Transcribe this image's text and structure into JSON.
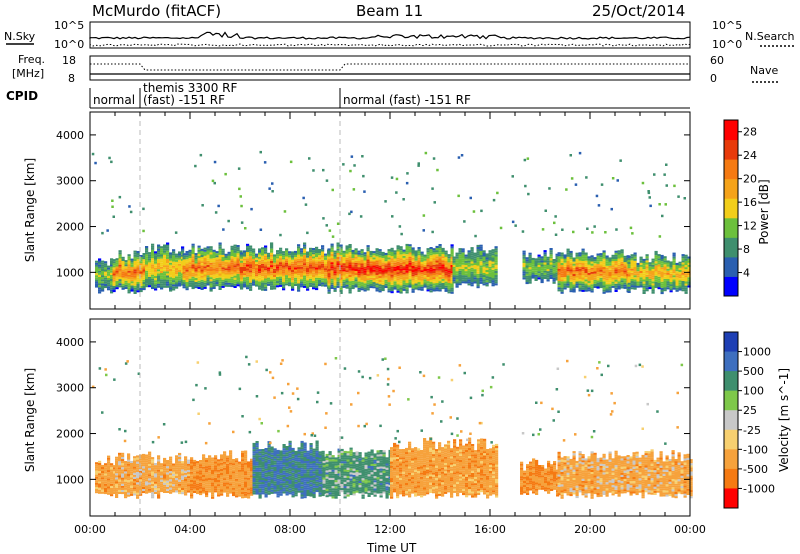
{
  "header": {
    "station": "McMurdo (fitACF)",
    "beam": "Beam 11",
    "date": "25/Oct/2014"
  },
  "noise_panel": {
    "left_label": "N.Sky",
    "right_label": "N.Search",
    "left_ticks": [
      "10^5",
      "10^0"
    ],
    "right_ticks": [
      "10^5",
      "10^0"
    ]
  },
  "freq_panel": {
    "left_label_1": "Freq.",
    "left_label_2": "[MHz]",
    "right_label": "Nave",
    "left_ticks": [
      "18",
      "8"
    ],
    "right_ticks": [
      "60",
      "0"
    ]
  },
  "cpid_panel": {
    "label": "CPID",
    "segments": [
      {
        "start_hour": 0,
        "end_hour": 2,
        "lines": [
          "normal"
        ]
      },
      {
        "start_hour": 2,
        "end_hour": 10,
        "lines": [
          "themis 3300 RF",
          "(fast) -151 RF"
        ]
      },
      {
        "start_hour": 10,
        "end_hour": 24,
        "lines": [
          "normal (fast) -151 RF"
        ]
      }
    ]
  },
  "colors": {
    "power": [
      "#0000ff",
      "#2a5fb0",
      "#3f8f6e",
      "#6cc03c",
      "#f2ce1a",
      "#f5a31a",
      "#f57a12",
      "#e83a0a",
      "#ff0000"
    ],
    "velocity": [
      "#1e3fb4",
      "#3e6fbf",
      "#3f8f6e",
      "#7ec84a",
      "#c8c8c8",
      "#f7d070",
      "#f6a23c",
      "#f57a12",
      "#ff0000"
    ]
  },
  "chart_data": [
    {
      "type": "heatmap",
      "name": "power",
      "xlabel": "",
      "ylabel": "Slant Range [km]",
      "xlim": [
        0,
        24
      ],
      "ylim": [
        200,
        4500
      ],
      "yticks": [
        "1000",
        "2000",
        "3000",
        "4000"
      ],
      "colorbar_label": "Power [dB]",
      "colorbar_ticks": [
        "4",
        "8",
        "12",
        "16",
        "20",
        "24",
        "28"
      ],
      "colorbar_range": [
        0,
        30
      ],
      "scatter_bands": [
        {
          "x_start": 0.2,
          "x_end": 0.9,
          "y_start": 600,
          "y_end": 1250,
          "level": 12
        },
        {
          "x_start": 0.9,
          "x_end": 2.2,
          "y_start": 600,
          "y_end": 1350,
          "level": 24
        },
        {
          "x_start": 2.2,
          "x_end": 3.7,
          "y_start": 650,
          "y_end": 1500,
          "level": 18
        },
        {
          "x_start": 3.7,
          "x_end": 6.0,
          "y_start": 650,
          "y_end": 1500,
          "level": 24
        },
        {
          "x_start": 6.0,
          "x_end": 9.5,
          "y_start": 650,
          "y_end": 1500,
          "level": 26
        },
        {
          "x_start": 9.5,
          "x_end": 14.5,
          "y_start": 600,
          "y_end": 1500,
          "level": 28
        },
        {
          "x_start": 14.5,
          "x_end": 16.2,
          "y_start": 700,
          "y_end": 1450,
          "level": 14
        },
        {
          "x_start": 17.3,
          "x_end": 18.7,
          "y_start": 800,
          "y_end": 1400,
          "level": 12
        },
        {
          "x_start": 18.7,
          "x_end": 21.5,
          "y_start": 600,
          "y_end": 1400,
          "level": 24
        },
        {
          "x_start": 21.5,
          "x_end": 24.0,
          "y_start": 600,
          "y_end": 1300,
          "level": 20
        }
      ]
    },
    {
      "type": "heatmap",
      "name": "velocity",
      "xlabel": "Time UT",
      "ylabel": "Slant Range [km]",
      "xlim": [
        0,
        24
      ],
      "ylim": [
        200,
        4500
      ],
      "xticks": [
        "00:00",
        "04:00",
        "08:00",
        "12:00",
        "16:00",
        "20:00",
        "00:00"
      ],
      "yticks": [
        "1000",
        "2000",
        "3000",
        "4000"
      ],
      "colorbar_label": "Velocity [m s^-1]",
      "colorbar_ticks": [
        "1000",
        "500",
        "100",
        "25",
        "-25",
        "-100",
        "-500",
        "-1000"
      ],
      "scatter_bands": [
        {
          "x_start": 0.2,
          "x_end": 1.0,
          "y_start": 650,
          "y_end": 1400,
          "level": -200
        },
        {
          "x_start": 1.0,
          "x_end": 4.0,
          "y_start": 650,
          "y_end": 1450,
          "level": -150
        },
        {
          "x_start": 4.0,
          "x_end": 6.5,
          "y_start": 650,
          "y_end": 1500,
          "level": -250
        },
        {
          "x_start": 6.5,
          "x_end": 9.3,
          "y_start": 650,
          "y_end": 1700,
          "level": 300
        },
        {
          "x_start": 9.3,
          "x_end": 12.0,
          "y_start": 650,
          "y_end": 1550,
          "level": 150
        },
        {
          "x_start": 12.0,
          "x_end": 16.3,
          "y_start": 650,
          "y_end": 1750,
          "level": -200
        },
        {
          "x_start": 17.2,
          "x_end": 18.7,
          "y_start": 700,
          "y_end": 1300,
          "level": -300
        },
        {
          "x_start": 18.7,
          "x_end": 24.0,
          "y_start": 650,
          "y_end": 1500,
          "level": -150
        }
      ]
    }
  ]
}
